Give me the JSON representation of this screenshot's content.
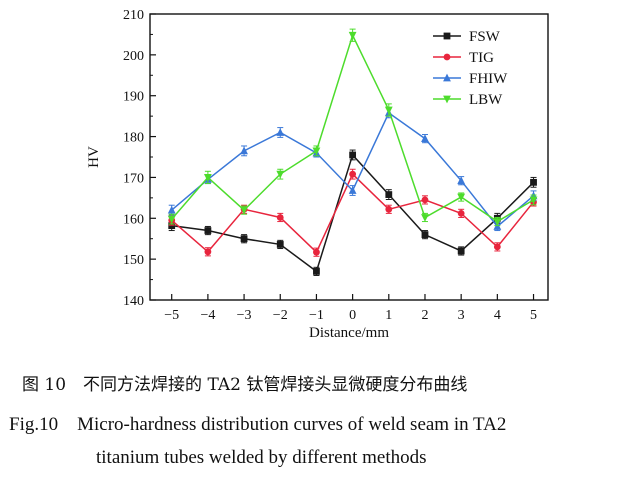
{
  "chart_data": {
    "type": "line",
    "title": "",
    "xlabel": "Distance/mm",
    "ylabel": "HV",
    "x": [
      -5,
      -4,
      -3,
      -2,
      -1,
      0,
      1,
      2,
      3,
      4,
      5
    ],
    "xlim": [
      -5.6,
      5.4
    ],
    "ylim": [
      140,
      210
    ],
    "yticks": [
      140,
      150,
      160,
      170,
      180,
      190,
      200,
      210
    ],
    "legend_position": "top-right",
    "grid": false,
    "series": [
      {
        "name": "FSW",
        "color": "#1a1a1a",
        "marker": "square",
        "values": [
          158.2,
          157.0,
          155.0,
          153.6,
          147.0,
          175.5,
          165.8,
          156.0,
          152.0,
          160.0,
          168.8
        ],
        "errors": [
          1.2,
          1.0,
          1.0,
          1.0,
          1.0,
          1.2,
          1.2,
          1.0,
          1.0,
          1.2,
          1.2
        ]
      },
      {
        "name": "TIG",
        "color": "#e8253d",
        "marker": "circle",
        "values": [
          159.5,
          151.8,
          162.2,
          160.2,
          151.7,
          170.8,
          162.2,
          164.5,
          161.2,
          153.0,
          164.0
        ],
        "errors": [
          1.2,
          1.0,
          1.0,
          1.0,
          1.0,
          1.2,
          1.0,
          1.0,
          1.0,
          1.0,
          1.0
        ]
      },
      {
        "name": "FHIW",
        "color": "#3a78d8",
        "marker": "triangle-up",
        "values": [
          162.0,
          169.5,
          176.5,
          181.0,
          176.0,
          166.8,
          185.8,
          179.5,
          169.2,
          158.0,
          165.5
        ],
        "errors": [
          1.2,
          1.0,
          1.2,
          1.2,
          1.0,
          1.2,
          1.2,
          1.0,
          1.0,
          1.0,
          1.2
        ]
      },
      {
        "name": "LBW",
        "color": "#4ddc2c",
        "marker": "triangle-down",
        "values": [
          159.8,
          170.0,
          162.0,
          170.8,
          176.5,
          204.8,
          186.5,
          160.2,
          165.2,
          159.2,
          164.5
        ],
        "errors": [
          1.2,
          1.5,
          1.0,
          1.2,
          1.2,
          1.5,
          1.5,
          1.0,
          1.0,
          1.0,
          1.2
        ]
      }
    ]
  },
  "captions": {
    "zh": "图 10　不同方法焊接的 TA2 钛管焊接头显微硬度分布曲线",
    "en_line1": "Fig.10　Micro-hardness distribution curves of weld seam in TA2",
    "en_line2": "titanium tubes welded by different methods"
  }
}
